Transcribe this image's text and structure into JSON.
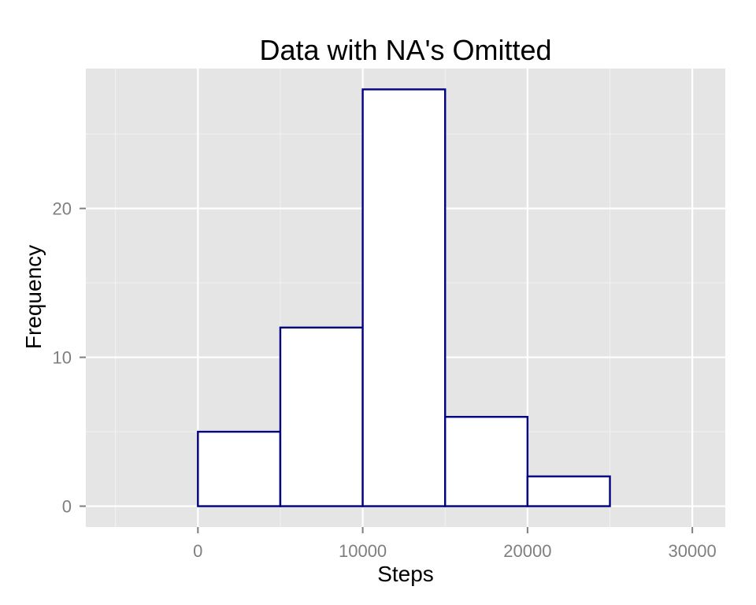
{
  "chart_data": {
    "type": "bar",
    "title": "Data with NA's Omitted",
    "xlabel": "Steps",
    "ylabel": "Frequency",
    "bins": [
      {
        "start": -5000,
        "end": 0,
        "value": 0
      },
      {
        "start": 0,
        "end": 5000,
        "value": 5
      },
      {
        "start": 5000,
        "end": 10000,
        "value": 12
      },
      {
        "start": 10000,
        "end": 15000,
        "value": 28
      },
      {
        "start": 15000,
        "end": 20000,
        "value": 6
      },
      {
        "start": 20000,
        "end": 25000,
        "value": 2
      },
      {
        "start": 25000,
        "end": 30000,
        "value": 0
      }
    ],
    "xlim": [
      -6800,
      32000
    ],
    "ylim": [
      -1.4,
      29.4
    ],
    "x_ticks": [
      0,
      10000,
      20000,
      30000
    ],
    "x_tick_labels": [
      "0",
      "10000",
      "20000",
      "30000"
    ],
    "x_minor_ticks": [
      -5000,
      5000,
      15000,
      25000
    ],
    "y_ticks": [
      0,
      10,
      20
    ],
    "y_tick_labels": [
      "0",
      "10",
      "20"
    ],
    "y_minor_ticks": [
      5,
      15,
      25
    ],
    "grid": true,
    "colors": {
      "panel": "#e5e5e5",
      "grid_major": "#ffffff",
      "grid_minor": "#f2f2f2",
      "bar_fill": "#ffffff",
      "bar_outline": "#000080",
      "tick_mark": "#7f7f7f"
    }
  }
}
